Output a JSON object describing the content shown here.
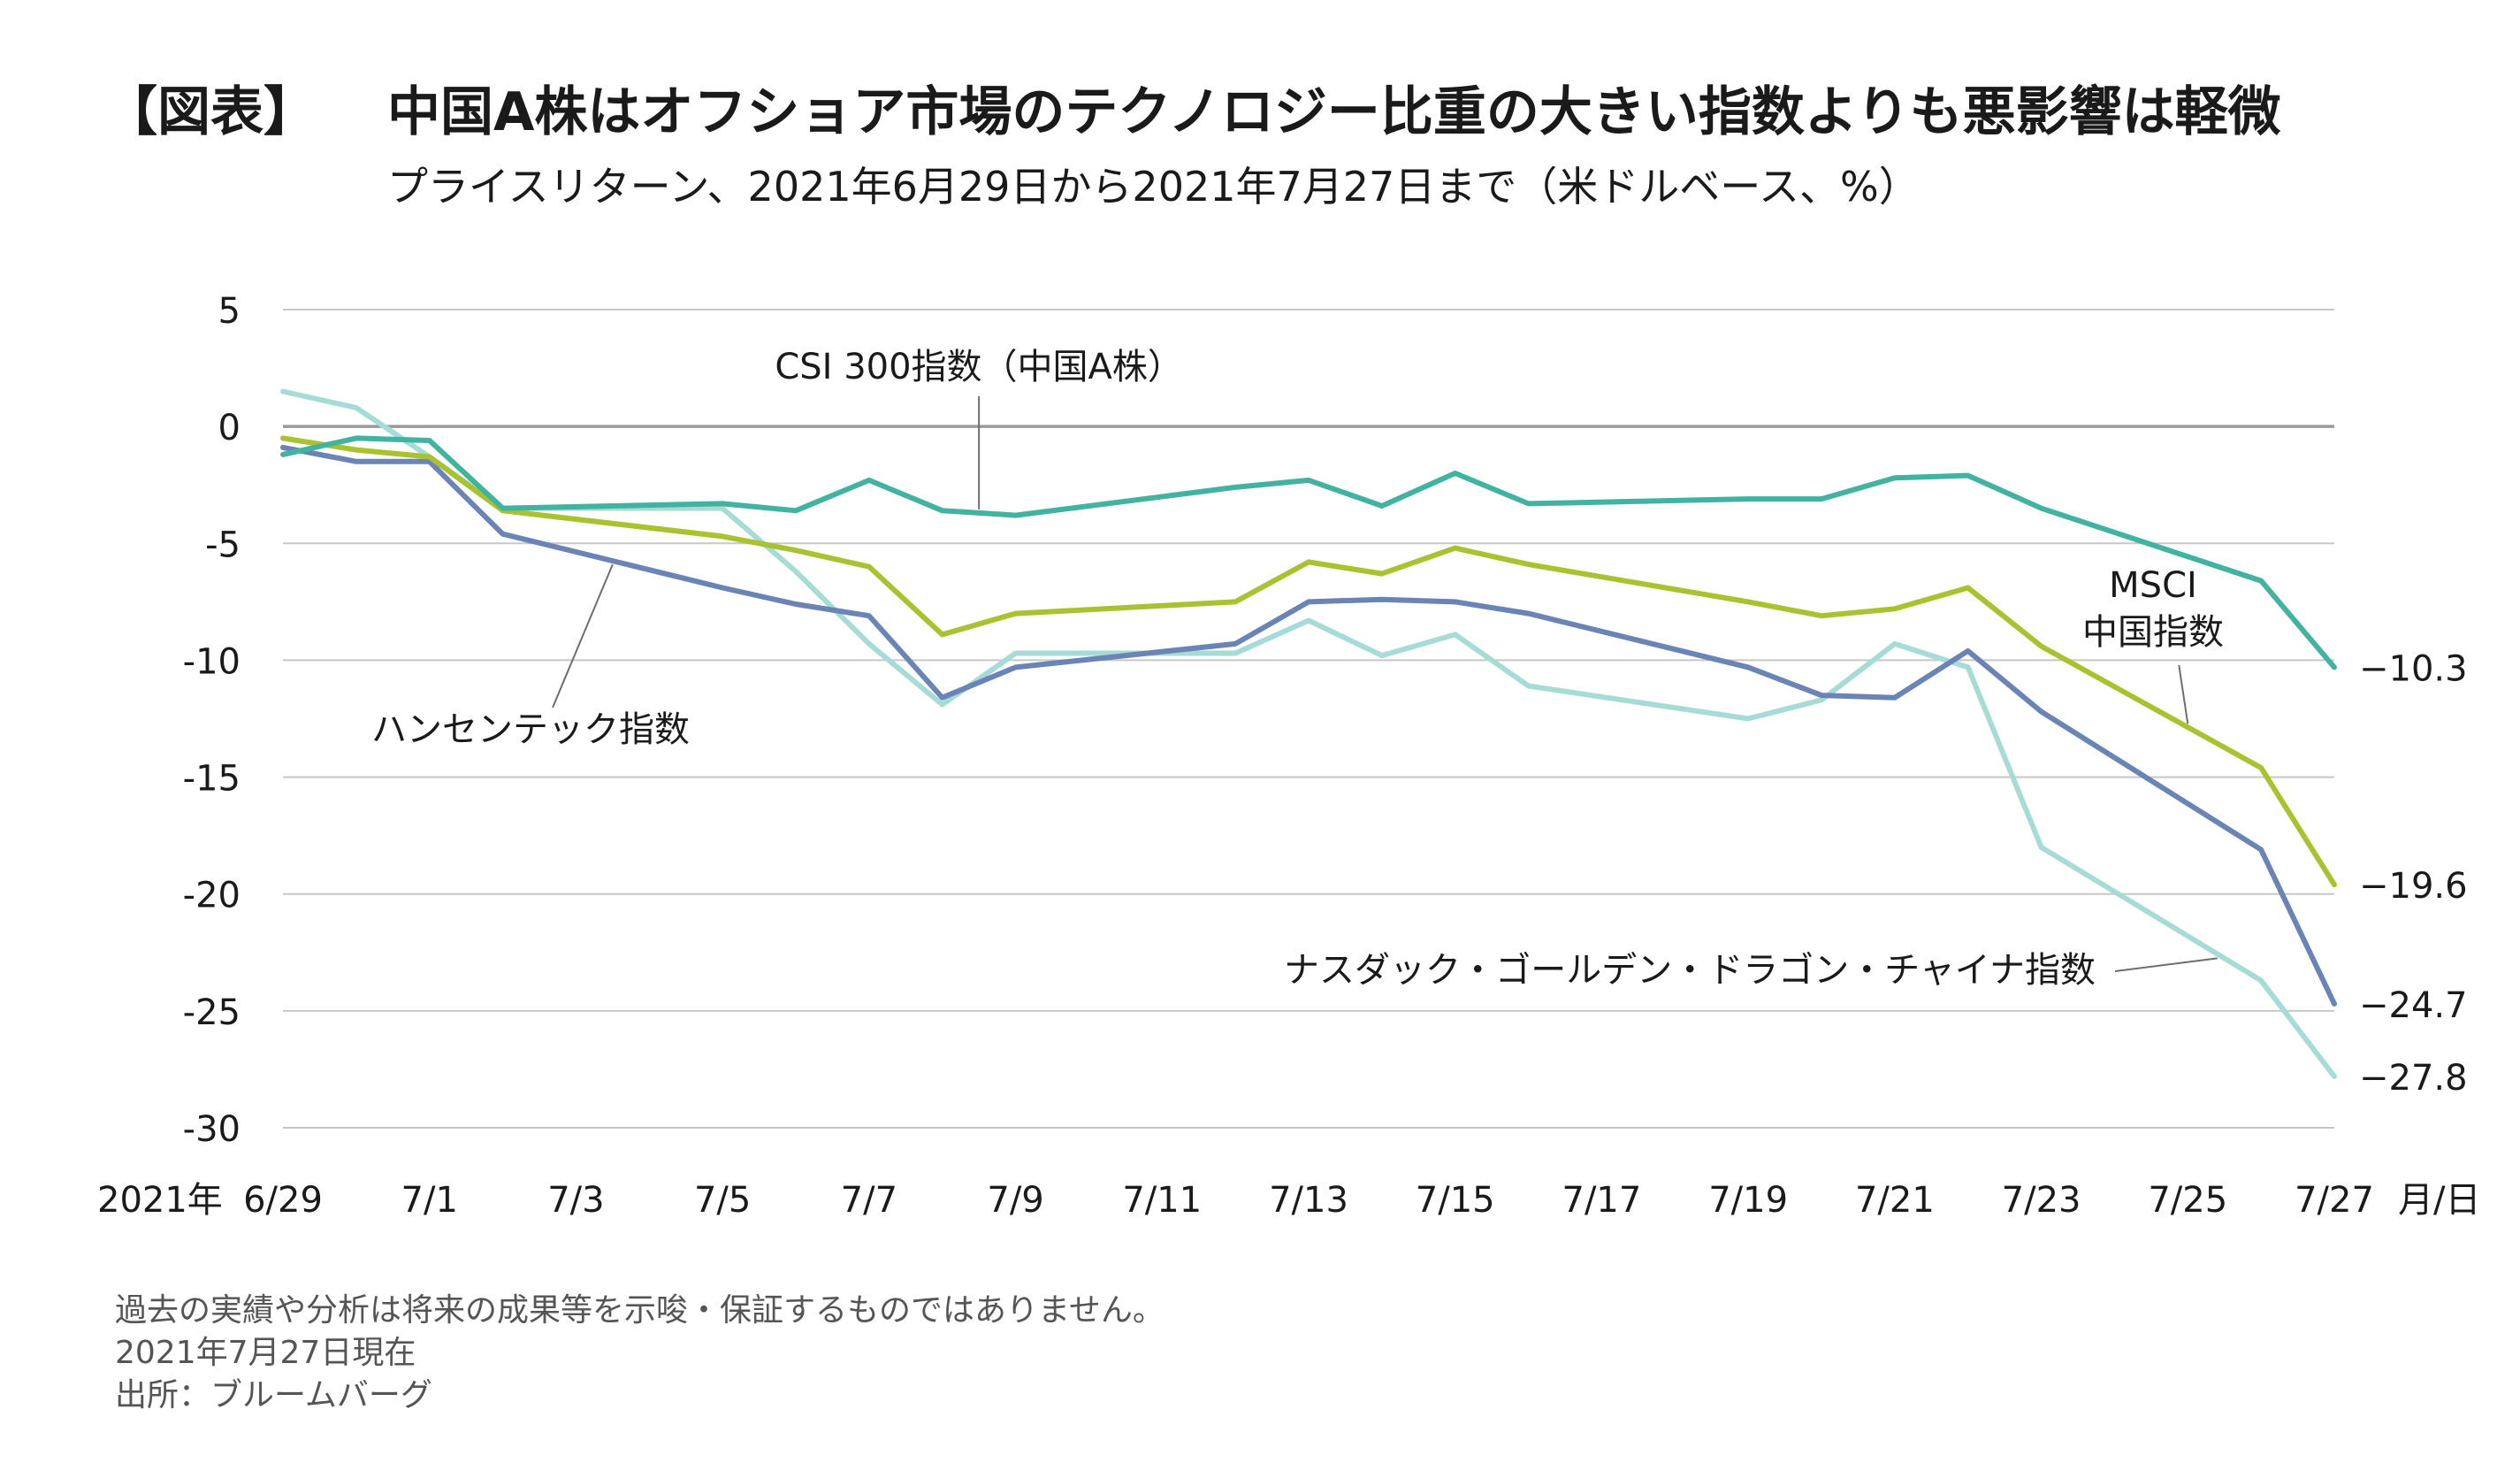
{
  "header": {
    "tag": "【図表】",
    "title": "中国A株はオフショア市場のテクノロジー比重の大きい指数よりも悪影響は軽微",
    "subtitle": "プライスリターン、2021年6月29日から2021年7月27日まで（米ドルベース、%）"
  },
  "footnotes": {
    "disclaimer": "過去の実績や分析は将来の成果等を示唆・保証するものではありません。",
    "as_of": "2021年7月27日現在",
    "source": "出所：ブルームバーグ"
  },
  "chart_data": {
    "type": "line",
    "title": "中国A株はオフショア市場のテクノロジー比重の大きい指数よりも悪影響は軽微",
    "subtitle": "プライスリターン、2021年6月29日から2021年7月27日まで（米ドルベース、%）",
    "xlabel": "月/日",
    "ylabel": "",
    "year_label": "2021年",
    "x": [
      "6/29",
      "6/30",
      "7/1",
      "7/2",
      "7/5",
      "7/6",
      "7/7",
      "7/8",
      "7/9",
      "7/12",
      "7/13",
      "7/14",
      "7/15",
      "7/16",
      "7/19",
      "7/20",
      "7/21",
      "7/22",
      "7/23",
      "7/26",
      "7/27"
    ],
    "x_pos": [
      0,
      1,
      2,
      3,
      6,
      7,
      8,
      9,
      10,
      13,
      14,
      15,
      16,
      17,
      20,
      21,
      22,
      23,
      24,
      27,
      28
    ],
    "x_ticks": [
      {
        "label": "6/29",
        "pos": 0
      },
      {
        "label": "7/1",
        "pos": 2
      },
      {
        "label": "7/3",
        "pos": 4
      },
      {
        "label": "7/5",
        "pos": 6
      },
      {
        "label": "7/7",
        "pos": 8
      },
      {
        "label": "7/9",
        "pos": 10
      },
      {
        "label": "7/11",
        "pos": 12
      },
      {
        "label": "7/13",
        "pos": 14
      },
      {
        "label": "7/15",
        "pos": 16
      },
      {
        "label": "7/17",
        "pos": 18
      },
      {
        "label": "7/19",
        "pos": 20
      },
      {
        "label": "7/21",
        "pos": 22
      },
      {
        "label": "7/23",
        "pos": 24
      },
      {
        "label": "7/25",
        "pos": 26
      },
      {
        "label": "7/27",
        "pos": 28
      }
    ],
    "xlim": [
      0,
      28
    ],
    "ylim": [
      -30,
      5
    ],
    "y_ticks": [
      5,
      0,
      -5,
      -10,
      -15,
      -20,
      -25,
      -30
    ],
    "y_tick_labels": [
      "5",
      "0",
      "-5",
      "-10",
      "-15",
      "-20",
      "-25",
      "-30"
    ],
    "grid": true,
    "series": [
      {
        "name": "CSI 300指数（中国A株）",
        "color": "#43b3a1",
        "values": [
          -1.2,
          -0.5,
          -0.6,
          -3.5,
          -3.3,
          -3.6,
          -2.3,
          -3.6,
          -3.8,
          -2.6,
          -2.3,
          -3.4,
          -2.0,
          -3.3,
          -3.1,
          -3.1,
          -2.2,
          -2.1,
          -3.5,
          -6.6,
          -10.3
        ],
        "end_label": "−10.3",
        "label_anchor_pos": 9.5
      },
      {
        "name": "MSCI中国指数",
        "label_lines": [
          "MSCI",
          "中国指数"
        ],
        "color": "#a9c22f",
        "values": [
          -0.5,
          -1.0,
          -1.3,
          -3.6,
          -4.7,
          -5.3,
          -6.0,
          -8.9,
          -8.0,
          -7.5,
          -5.8,
          -6.3,
          -5.2,
          -5.9,
          -7.5,
          -8.1,
          -7.8,
          -6.9,
          -9.4,
          -14.6,
          -19.6
        ],
        "end_label": "−19.6",
        "label_anchor_pos": 26
      },
      {
        "name": "ハンセンテック指数",
        "color": "#6a84b6",
        "values": [
          -0.9,
          -1.5,
          -1.5,
          -4.6,
          -6.9,
          -7.6,
          -8.1,
          -11.6,
          -10.3,
          -9.3,
          -7.5,
          -7.4,
          -7.5,
          -8.0,
          -10.3,
          -11.5,
          -11.6,
          -9.6,
          -12.2,
          -18.1,
          -24.7
        ],
        "end_label": "−24.7",
        "label_anchor_pos": 4.5
      },
      {
        "name": "ナスダック・ゴールデン・ドラゴン・チャイナ指数",
        "color": "#a7dcd6",
        "values": [
          1.5,
          0.8,
          -1.3,
          -3.5,
          -3.5,
          -6.2,
          -9.3,
          -11.9,
          -9.7,
          -9.7,
          -8.3,
          -9.8,
          -8.9,
          -11.1,
          -12.5,
          -11.7,
          -9.3,
          -10.3,
          -18.0,
          -23.7,
          -27.8
        ],
        "end_label": "−27.8",
        "label_anchor_pos": 26.5
      }
    ]
  }
}
